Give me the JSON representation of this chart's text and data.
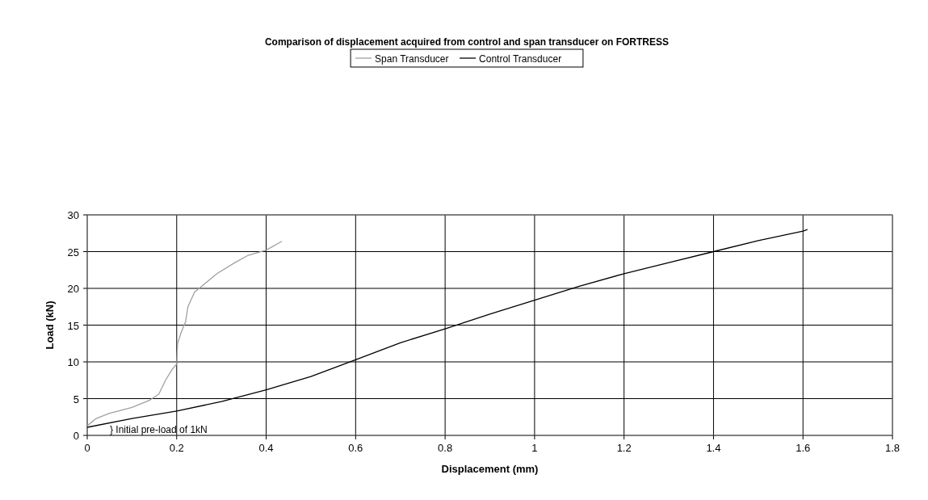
{
  "chart_data": {
    "type": "line",
    "title": "Comparison of displacement acquired from control and span transducer on FORTRESS",
    "xlabel": "Displacement (mm)",
    "ylabel": "Load (kN)",
    "xlim": [
      0,
      1.8
    ],
    "xticks": [
      0,
      0.2,
      0.4,
      0.6,
      0.8,
      1,
      1.2,
      1.4,
      1.6,
      1.8
    ],
    "ylim": [
      0,
      30
    ],
    "yticks": [
      0,
      5,
      10,
      15,
      20,
      25,
      30
    ],
    "grid": true,
    "legend": "top",
    "marker": "none",
    "line_style": "solid",
    "annotations": [
      "} Initial pre-load of 1kN"
    ],
    "series": [
      {
        "name": "Span Transducer",
        "color": "#a0a0a0",
        "x": [
          0,
          0.02,
          0.05,
          0.1,
          0.14,
          0.16,
          0.175,
          0.19,
          0.2,
          0.202,
          0.21,
          0.22,
          0.225,
          0.24,
          0.26,
          0.29,
          0.33,
          0.36,
          0.4,
          0.435
        ],
        "values": [
          1.3,
          2.3,
          3.0,
          3.8,
          4.8,
          5.6,
          7.5,
          9,
          9.7,
          12.5,
          14,
          15.5,
          17.5,
          19.5,
          20.5,
          22,
          23.5,
          24.5,
          25.2,
          26.4
        ]
      },
      {
        "name": "Control Transducer",
        "color": "#000000",
        "x": [
          0,
          0.1,
          0.2,
          0.3,
          0.4,
          0.5,
          0.6,
          0.7,
          0.8,
          0.9,
          1.0,
          1.1,
          1.2,
          1.3,
          1.4,
          1.5,
          1.6,
          1.61
        ],
        "values": [
          1.1,
          2.3,
          3.3,
          4.6,
          6.2,
          8.0,
          10.3,
          12.6,
          14.5,
          16.5,
          18.4,
          20.3,
          22.0,
          23.5,
          25.0,
          26.5,
          27.8,
          28.0
        ]
      }
    ]
  }
}
